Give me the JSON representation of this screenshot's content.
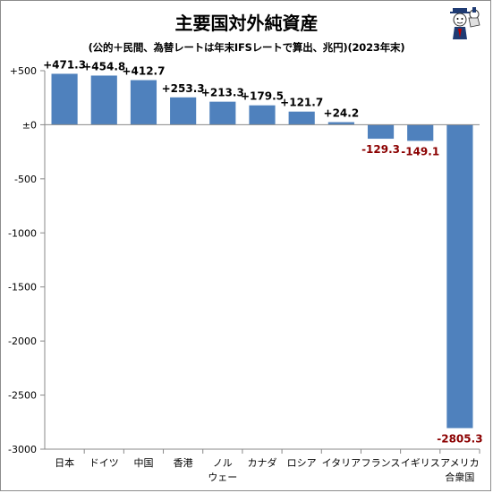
{
  "chart_data": {
    "type": "bar",
    "title": "主要国対外純資産",
    "subtitle": "(公的＋民間、為替レートは年末IFSレートで算出、兆円)(2023年末)",
    "categories": [
      [
        "日本"
      ],
      [
        "ドイツ"
      ],
      [
        "中国"
      ],
      [
        "香港"
      ],
      [
        "ノル",
        "ウェー"
      ],
      [
        "カナダ"
      ],
      [
        "ロシア"
      ],
      [
        "イタリア"
      ],
      [
        "フランス"
      ],
      [
        "イギリス"
      ],
      [
        "アメリカ",
        "合衆国"
      ]
    ],
    "values": [
      471.3,
      454.8,
      412.7,
      253.3,
      213.3,
      179.5,
      121.7,
      24.2,
      -129.3,
      -149.1,
      -2805.3
    ],
    "data_labels": [
      "+471.3",
      "+454.8",
      "+412.7",
      "+253.3",
      "+213.3",
      "+179.5",
      "+121.7",
      "+24.2",
      "-129.3",
      "-149.1",
      "-2805.3"
    ],
    "ylim": [
      -3000,
      500
    ],
    "yticks": [
      500,
      0,
      -500,
      -1000,
      -1500,
      -2000,
      -2500,
      -3000
    ],
    "ytick_labels": [
      "+500",
      "±0",
      "-500",
      "-1000",
      "-1500",
      "-2000",
      "-2500",
      "-3000"
    ],
    "bar_color": "#4f81bd",
    "positive_label_color": "#000000",
    "negative_label_color": "#8b0000",
    "grid": false,
    "legend": "none"
  }
}
